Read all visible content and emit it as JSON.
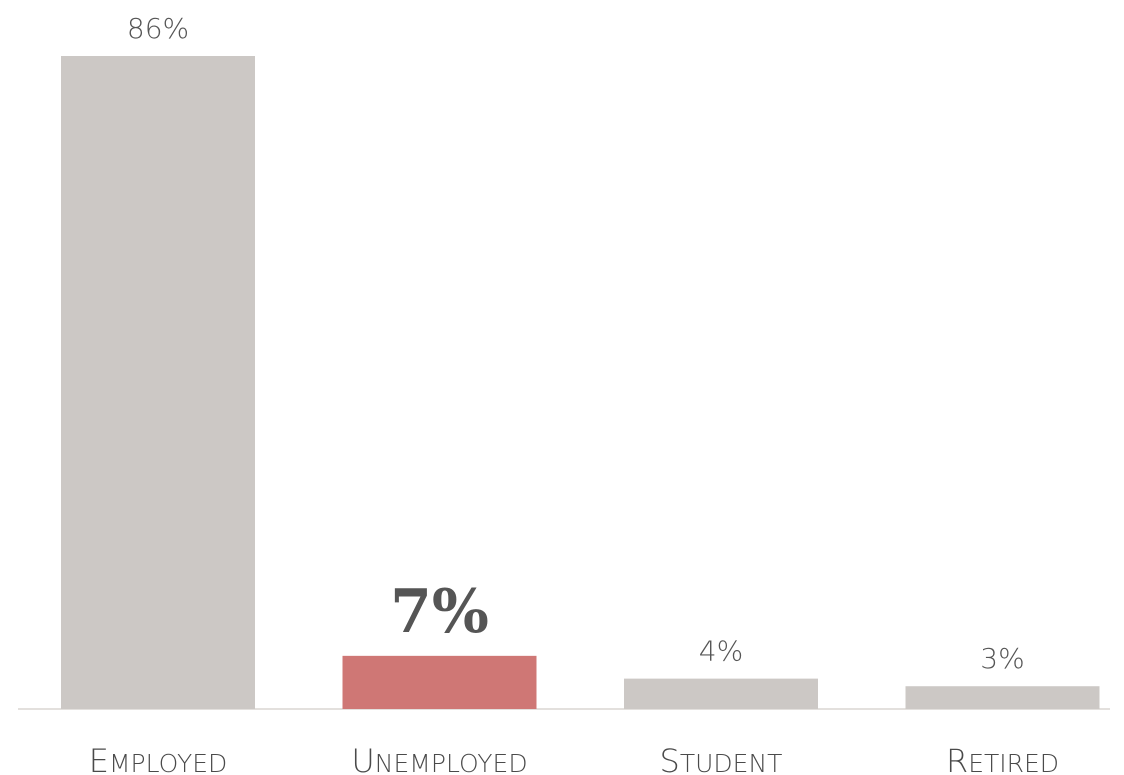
{
  "chart_data": {
    "type": "bar",
    "categories": [
      "Employed",
      "Unemployed",
      "Student",
      "Retired"
    ],
    "values": [
      86,
      7,
      4,
      3
    ],
    "value_labels": [
      "86%",
      "7%",
      "4%",
      "3%"
    ],
    "highlight_index": 1,
    "title": "",
    "xlabel": "",
    "ylabel": "",
    "ylim": [
      0,
      86
    ],
    "grid": false,
    "legend": "none",
    "colors": {
      "bar": "#ccc8c5",
      "highlight": "#cf7775",
      "label": "#555555",
      "axis": "#e3e0dd"
    }
  }
}
